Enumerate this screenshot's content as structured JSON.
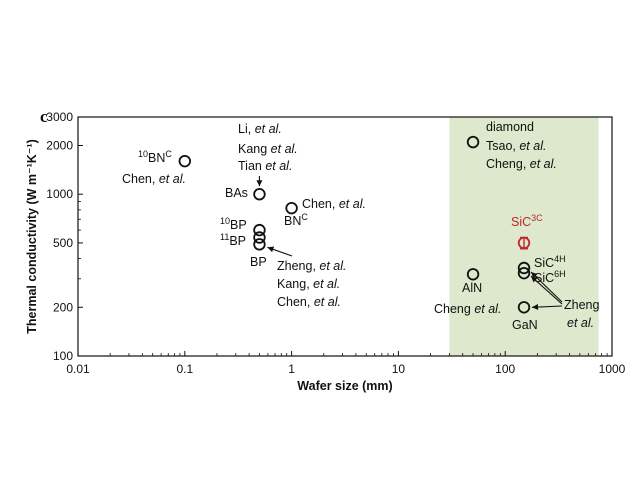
{
  "chart_data": {
    "type": "scatter",
    "panel_label": "c",
    "xlabel": "Wafer size (mm)",
    "ylabel": "Thermal conductivity (W m⁻¹K⁻¹)",
    "xscale": "log",
    "yscale": "log",
    "xlim": [
      0.01,
      1000
    ],
    "ylim": [
      100,
      3000
    ],
    "x_ticks": [
      "0.01",
      "0.1",
      "1",
      "10",
      "100",
      "1000"
    ],
    "y_ticks": [
      "100",
      "200",
      "500",
      "1000",
      "2000",
      "3000"
    ],
    "shaded_region": {
      "x_range": [
        30,
        750
      ],
      "color": "#dde8cc"
    },
    "marker_color": "#111111",
    "highlight_color": "#c0272d",
    "points": [
      {
        "id": "10bn",
        "x": 0.1,
        "y": 1600
      },
      {
        "id": "bas",
        "x": 0.5,
        "y": 1000
      },
      {
        "id": "bn",
        "x": 1.0,
        "y": 820
      },
      {
        "id": "10bp",
        "x": 0.5,
        "y": 600
      },
      {
        "id": "11bp",
        "x": 0.5,
        "y": 540
      },
      {
        "id": "bp",
        "x": 0.5,
        "y": 490
      },
      {
        "id": "diamond",
        "x": 50,
        "y": 2100
      },
      {
        "id": "sic3c",
        "x": 150,
        "y": 500,
        "highlight": true,
        "error": 40
      },
      {
        "id": "aln",
        "x": 50,
        "y": 320
      },
      {
        "id": "sic4h",
        "x": 150,
        "y": 350
      },
      {
        "id": "sic6h",
        "x": 150,
        "y": 325
      },
      {
        "id": "gan",
        "x": 150,
        "y": 200
      }
    ],
    "labels": {
      "l10bn": {
        "sup_pre": "10",
        "base": "BN",
        "sup_post": "C"
      },
      "l10bn_ref": {
        "text": "Chen, ",
        "it": "et al."
      },
      "lbas_ref1": {
        "text": "Li, ",
        "it": "et al."
      },
      "lbas_ref2": {
        "text": "Kang ",
        "it": "et al."
      },
      "lbas_ref3": {
        "text": "Tian ",
        "it": "et al."
      },
      "lbas": {
        "text": "BAs"
      },
      "lbn_ref": {
        "text": "Chen, ",
        "it": "et al."
      },
      "lbn": {
        "base": "BN",
        "sup_post": "C"
      },
      "l10bp": {
        "sup_pre": "10",
        "base": "BP"
      },
      "l11bp": {
        "sup_pre": "11",
        "base": "BP"
      },
      "lbp": {
        "text": "BP"
      },
      "lbp_ref1": {
        "text": "Zheng, ",
        "it": "et al."
      },
      "lbp_ref2": {
        "text": "Kang, ",
        "it": "et al."
      },
      "lbp_ref3": {
        "text": "Chen, ",
        "it": "et al."
      },
      "ldia": {
        "text": "diamond"
      },
      "ldia_ref1": {
        "text": "Tsao, ",
        "it": "et al."
      },
      "ldia_ref2": {
        "text": "Cheng, ",
        "it": "et al."
      },
      "lsic3c": {
        "base": "SiC",
        "sup_post": "3C"
      },
      "lsic4h": {
        "base": "SiC",
        "sup_post": "4H"
      },
      "lsic6h": {
        "base": "SiC",
        "sup_post": "6H"
      },
      "laln": {
        "text": "AlN"
      },
      "lgan_ref": {
        "text": "Cheng ",
        "it": "et al."
      },
      "lgan": {
        "text": "GaN"
      },
      "lzheng1": {
        "text": "Zheng"
      },
      "lzheng2": {
        "it": "et al."
      }
    }
  }
}
